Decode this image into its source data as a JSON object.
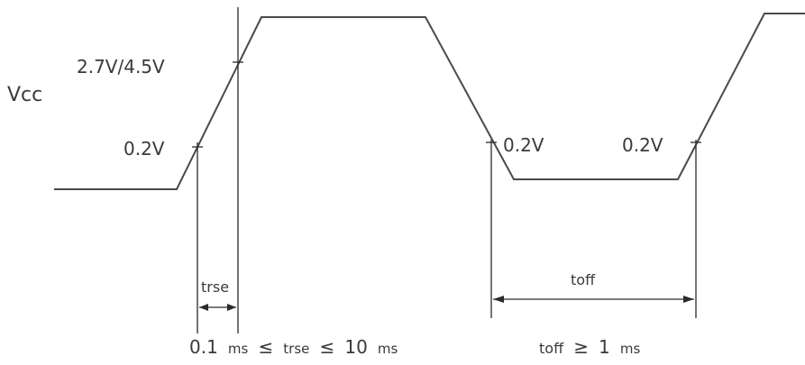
{
  "signal": {
    "name": "Vcc",
    "upper_threshold": "2.7V/4.5V",
    "lower_threshold_rise": "0.2V",
    "lower_threshold_fall": "0.2V",
    "lower_threshold_rerise": "0.2V"
  },
  "timing": {
    "rise_label": "trse",
    "rise_constraint": {
      "lead": "0.1",
      "unit1": "ms",
      "op1": "≤",
      "var": "trse",
      "op2": "≤",
      "value2": "10",
      "unit2": "ms"
    },
    "off_label": "toff",
    "off_constraint": {
      "var": "toff",
      "op": "≥",
      "value": "1",
      "unit": "ms"
    }
  }
}
